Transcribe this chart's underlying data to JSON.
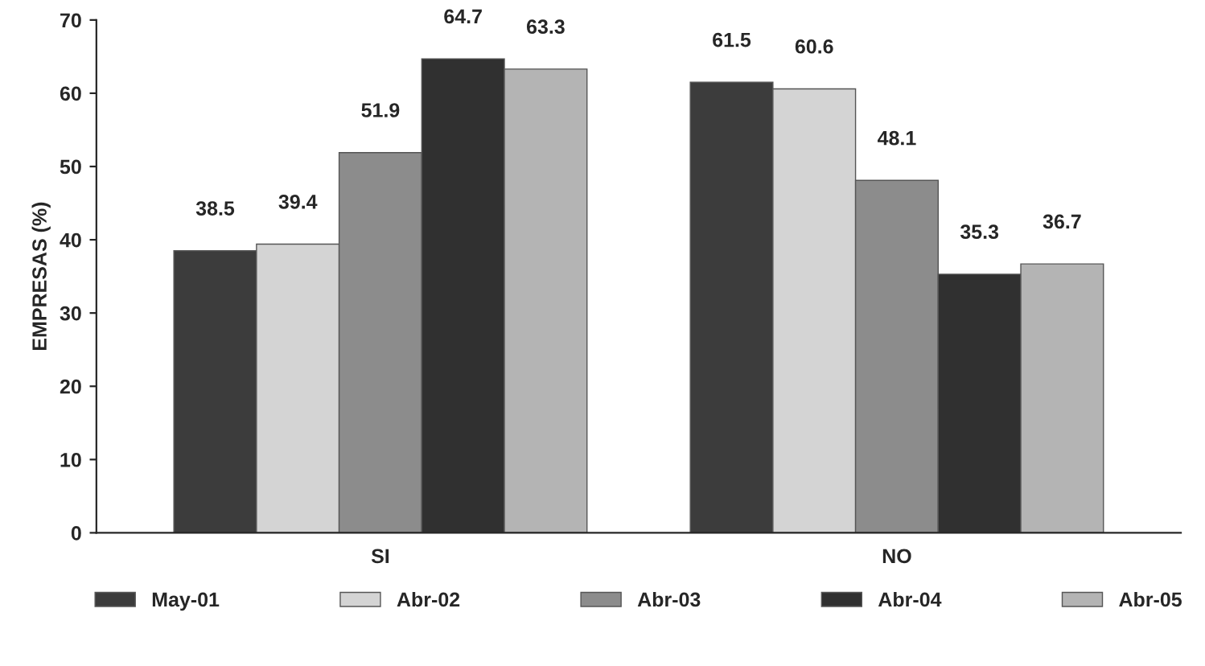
{
  "chart_data": {
    "type": "bar",
    "ylabel": "EMPRESAS (%)",
    "categories": [
      "SI",
      "NO"
    ],
    "series": [
      {
        "name": "May-01",
        "color": "#3c3c3c",
        "values": [
          38.5,
          61.5
        ]
      },
      {
        "name": "Abr-02",
        "color": "#d4d4d4",
        "values": [
          39.4,
          60.6
        ]
      },
      {
        "name": "Abr-03",
        "color": "#8c8c8c",
        "values": [
          51.9,
          48.1
        ]
      },
      {
        "name": "Abr-04",
        "color": "#303030",
        "values": [
          64.7,
          35.3
        ]
      },
      {
        "name": "Abr-05",
        "color": "#b4b4b4",
        "values": [
          63.3,
          36.7
        ]
      }
    ],
    "ylim": [
      0,
      70
    ],
    "yticks": [
      0,
      10,
      20,
      30,
      40,
      50,
      60,
      70
    ],
    "data_labels": true,
    "legend": "bottom",
    "grid": false
  }
}
